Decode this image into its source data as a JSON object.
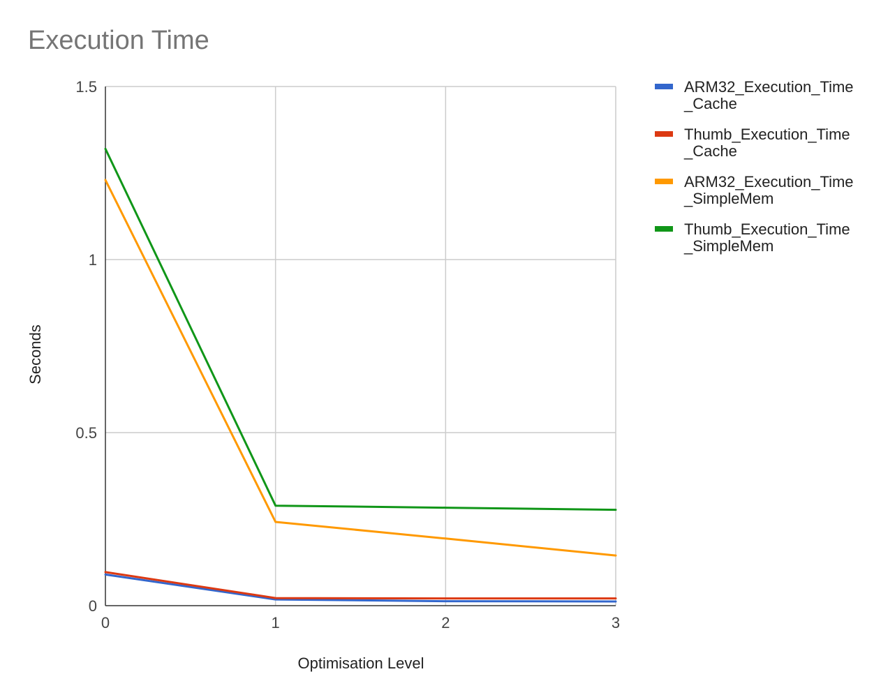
{
  "chart_data": {
    "type": "line",
    "title": "Execution Time",
    "xlabel": "Optimisation Level",
    "ylabel": "Seconds",
    "x": [
      0,
      1,
      2,
      3
    ],
    "x_tick_labels": [
      "0",
      "1",
      "2",
      "3"
    ],
    "xlim": [
      0,
      3
    ],
    "ylim": [
      0,
      1.5
    ],
    "y_ticks": [
      0,
      0.5,
      1,
      1.5
    ],
    "y_tick_labels": [
      "0",
      "0.5",
      "1",
      "1.5"
    ],
    "grid": true,
    "legend_position": "right",
    "series": [
      {
        "name": "ARM32_Execution_Time_Cache",
        "legend_lines": [
          "ARM32_Execution_Time",
          "_Cache"
        ],
        "color": "#3366cc",
        "values": [
          0.09,
          0.018,
          0.013,
          0.012
        ]
      },
      {
        "name": "Thumb_Execution_Time_Cache",
        "legend_lines": [
          "Thumb_Execution_Time",
          "_Cache"
        ],
        "color": "#dc3912",
        "values": [
          0.097,
          0.022,
          0.021,
          0.021
        ]
      },
      {
        "name": "ARM32_Execution_Time_SimpleMem",
        "legend_lines": [
          "ARM32_Execution_Time",
          "_SimpleMem"
        ],
        "color": "#ff9900",
        "values": [
          1.23,
          0.242,
          0.194,
          0.145
        ]
      },
      {
        "name": "Thumb_Execution_Time_SimpleMem",
        "legend_lines": [
          "Thumb_Execution_Time",
          "_SimpleMem"
        ],
        "color": "#109618",
        "values": [
          1.32,
          0.289,
          0.283,
          0.277
        ]
      }
    ]
  }
}
